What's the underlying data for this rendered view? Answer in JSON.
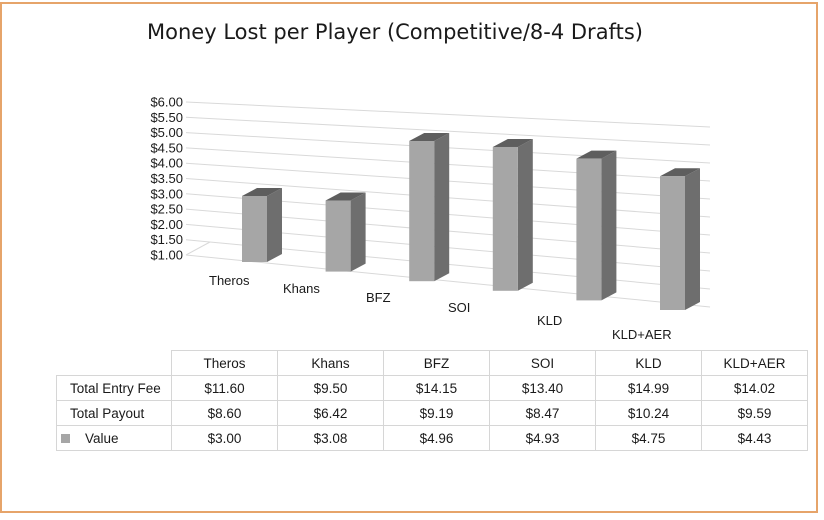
{
  "chart_data": {
    "type": "bar",
    "title": "Money Lost per Player (Competitive/8-4 Drafts)",
    "categories": [
      "Theros",
      "Khans",
      "BFZ",
      "SOI",
      "KLD",
      "KLD+AER"
    ],
    "series": [
      {
        "name": "Value",
        "values": [
          3.0,
          3.08,
          4.96,
          4.93,
          4.75,
          4.43
        ]
      }
    ],
    "ylim": [
      1.0,
      6.0
    ],
    "y_ticks": [
      "$1.00",
      "$1.50",
      "$2.00",
      "$2.50",
      "$3.00",
      "$3.50",
      "$4.00",
      "$4.50",
      "$5.00",
      "$5.50",
      "$6.00"
    ],
    "grid": true,
    "style": "3d-column",
    "bar_color": "#a6a6a6",
    "table": {
      "columns": [
        "Theros",
        "Khans",
        "BFZ",
        "SOI",
        "KLD",
        "KLD+AER"
      ],
      "rows": [
        {
          "label": "Total Entry Fee",
          "values": [
            "$11.60",
            "$9.50",
            "$14.15",
            "$13.40",
            "$14.99",
            "$14.02"
          ]
        },
        {
          "label": "Total Payout",
          "values": [
            "$8.60",
            "$6.42",
            "$9.19",
            "$8.47",
            "$10.24",
            "$9.59"
          ]
        },
        {
          "label": "Value",
          "values": [
            "$3.00",
            "$3.08",
            "$4.96",
            "$4.93",
            "$4.75",
            "$4.43"
          ]
        }
      ]
    }
  }
}
